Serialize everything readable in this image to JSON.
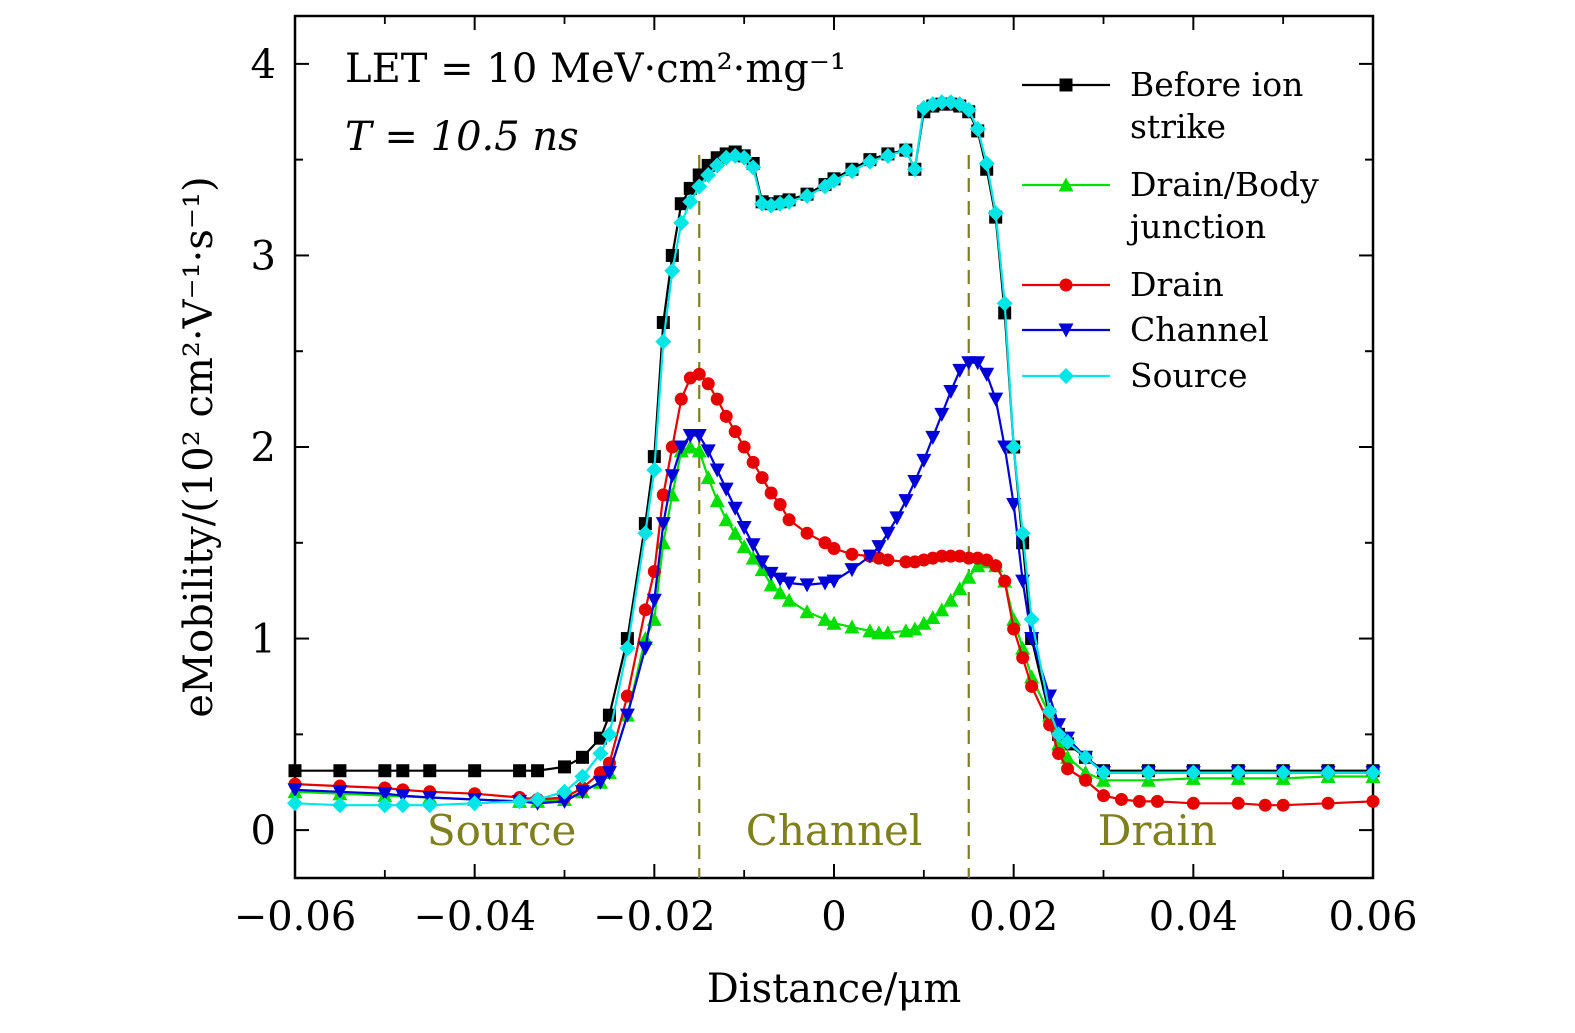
{
  "chart_data": {
    "type": "line",
    "title": "",
    "xlabel": "Distance/μm",
    "ylabel": "eMobility/(10² cm²·V⁻¹·s⁻¹)",
    "xlim": [
      -0.06,
      0.06
    ],
    "ylim": [
      -0.25,
      4.25
    ],
    "xticks": [
      -0.06,
      -0.04,
      -0.02,
      0,
      0.02,
      0.04,
      0.06
    ],
    "xtick_labels": [
      "−0.06",
      "−0.04",
      "−0.02",
      "0",
      "0.02",
      "0.04",
      "0.06"
    ],
    "yticks": [
      0,
      1,
      2,
      3,
      4
    ],
    "ytick_labels": [
      "0",
      "1",
      "2",
      "3",
      "4"
    ],
    "grid": false,
    "legend_position": "top-right",
    "annotations": {
      "let": "LET = 10 MeV·cm²·mg⁻¹",
      "time": "T = 10.5 ns"
    },
    "regions": [
      {
        "label": "Source",
        "x": -0.037
      },
      {
        "label": "Channel",
        "x": 0
      },
      {
        "label": "Drain",
        "x": 0.036
      }
    ],
    "boundaries": [
      -0.015,
      0.015
    ],
    "boundary_color": "#7f7f1e",
    "series": [
      {
        "name": "Before ion strike",
        "color": "#000000",
        "marker": "square",
        "x": [
          -0.06,
          -0.055,
          -0.05,
          -0.048,
          -0.045,
          -0.04,
          -0.035,
          -0.033,
          -0.03,
          -0.028,
          -0.026,
          -0.025,
          -0.023,
          -0.021,
          -0.02,
          -0.019,
          -0.018,
          -0.017,
          -0.016,
          -0.015,
          -0.014,
          -0.013,
          -0.012,
          -0.011,
          -0.01,
          -0.009,
          -0.008,
          -0.007,
          -0.006,
          -0.005,
          -0.003,
          -0.001,
          0,
          0.002,
          0.004,
          0.006,
          0.008,
          0.009,
          0.01,
          0.011,
          0.012,
          0.013,
          0.014,
          0.015,
          0.016,
          0.017,
          0.018,
          0.019,
          0.02,
          0.021,
          0.022,
          0.024,
          0.025,
          0.026,
          0.028,
          0.03,
          0.035,
          0.04,
          0.045,
          0.05,
          0.055,
          0.06
        ],
        "y": [
          0.31,
          0.31,
          0.31,
          0.31,
          0.31,
          0.31,
          0.31,
          0.31,
          0.33,
          0.38,
          0.48,
          0.6,
          1.0,
          1.6,
          1.95,
          2.65,
          3.0,
          3.27,
          3.35,
          3.42,
          3.47,
          3.51,
          3.53,
          3.54,
          3.52,
          3.48,
          3.28,
          3.27,
          3.28,
          3.29,
          3.32,
          3.37,
          3.4,
          3.45,
          3.5,
          3.53,
          3.55,
          3.45,
          3.75,
          3.78,
          3.79,
          3.79,
          3.78,
          3.75,
          3.65,
          3.45,
          3.2,
          2.7,
          2.0,
          1.5,
          1.0,
          0.6,
          0.5,
          0.45,
          0.38,
          0.31,
          0.31,
          0.31,
          0.31,
          0.31,
          0.31,
          0.31
        ]
      },
      {
        "name": "Drain/Body junction",
        "color": "#00e000",
        "marker": "triangle-up",
        "x": [
          -0.06,
          -0.055,
          -0.05,
          -0.045,
          -0.04,
          -0.035,
          -0.033,
          -0.03,
          -0.028,
          -0.026,
          -0.025,
          -0.023,
          -0.021,
          -0.02,
          -0.019,
          -0.018,
          -0.017,
          -0.016,
          -0.015,
          -0.014,
          -0.013,
          -0.012,
          -0.011,
          -0.01,
          -0.009,
          -0.008,
          -0.007,
          -0.006,
          -0.005,
          -0.003,
          -0.001,
          0,
          0.002,
          0.004,
          0.005,
          0.006,
          0.008,
          0.009,
          0.01,
          0.011,
          0.012,
          0.013,
          0.014,
          0.015,
          0.016,
          0.017,
          0.018,
          0.019,
          0.02,
          0.021,
          0.022,
          0.024,
          0.025,
          0.026,
          0.028,
          0.03,
          0.035,
          0.04,
          0.045,
          0.05,
          0.055,
          0.06
        ],
        "y": [
          0.2,
          0.19,
          0.18,
          0.17,
          0.16,
          0.15,
          0.15,
          0.16,
          0.2,
          0.25,
          0.3,
          0.6,
          1.0,
          1.1,
          1.5,
          1.75,
          1.98,
          2.0,
          1.98,
          1.84,
          1.72,
          1.62,
          1.55,
          1.48,
          1.42,
          1.36,
          1.28,
          1.24,
          1.2,
          1.14,
          1.1,
          1.08,
          1.06,
          1.04,
          1.03,
          1.03,
          1.04,
          1.05,
          1.08,
          1.11,
          1.15,
          1.2,
          1.26,
          1.32,
          1.38,
          1.4,
          1.38,
          1.3,
          1.1,
          0.95,
          0.8,
          0.6,
          0.45,
          0.38,
          0.3,
          0.26,
          0.26,
          0.27,
          0.27,
          0.27,
          0.28,
          0.28
        ]
      },
      {
        "name": "Drain",
        "color": "#e60000",
        "marker": "circle",
        "x": [
          -0.06,
          -0.055,
          -0.05,
          -0.048,
          -0.045,
          -0.04,
          -0.035,
          -0.033,
          -0.03,
          -0.028,
          -0.026,
          -0.025,
          -0.023,
          -0.021,
          -0.02,
          -0.019,
          -0.018,
          -0.017,
          -0.016,
          -0.015,
          -0.014,
          -0.013,
          -0.012,
          -0.011,
          -0.01,
          -0.009,
          -0.008,
          -0.007,
          -0.006,
          -0.005,
          -0.003,
          -0.001,
          0,
          0.002,
          0.004,
          0.005,
          0.006,
          0.008,
          0.009,
          0.01,
          0.011,
          0.012,
          0.013,
          0.014,
          0.015,
          0.016,
          0.017,
          0.018,
          0.019,
          0.02,
          0.021,
          0.022,
          0.024,
          0.025,
          0.026,
          0.028,
          0.03,
          0.032,
          0.034,
          0.036,
          0.04,
          0.045,
          0.048,
          0.05,
          0.055,
          0.06
        ],
        "y": [
          0.24,
          0.23,
          0.22,
          0.21,
          0.2,
          0.19,
          0.17,
          0.16,
          0.17,
          0.22,
          0.3,
          0.35,
          0.7,
          1.15,
          1.35,
          1.75,
          2.0,
          2.25,
          2.36,
          2.38,
          2.33,
          2.25,
          2.16,
          2.08,
          2.0,
          1.92,
          1.84,
          1.76,
          1.7,
          1.62,
          1.55,
          1.5,
          1.47,
          1.44,
          1.43,
          1.42,
          1.41,
          1.4,
          1.4,
          1.41,
          1.42,
          1.43,
          1.43,
          1.43,
          1.42,
          1.42,
          1.41,
          1.38,
          1.3,
          1.05,
          0.9,
          0.75,
          0.55,
          0.4,
          0.32,
          0.26,
          0.18,
          0.16,
          0.15,
          0.15,
          0.14,
          0.14,
          0.13,
          0.13,
          0.14,
          0.15
        ]
      },
      {
        "name": "Channel",
        "color": "#0000d8",
        "marker": "triangle-down",
        "x": [
          -0.06,
          -0.055,
          -0.05,
          -0.048,
          -0.045,
          -0.04,
          -0.035,
          -0.033,
          -0.03,
          -0.028,
          -0.026,
          -0.025,
          -0.023,
          -0.021,
          -0.02,
          -0.019,
          -0.018,
          -0.017,
          -0.016,
          -0.015,
          -0.014,
          -0.013,
          -0.012,
          -0.011,
          -0.01,
          -0.009,
          -0.008,
          -0.007,
          -0.006,
          -0.005,
          -0.003,
          -0.001,
          0,
          0.002,
          0.004,
          0.005,
          0.006,
          0.007,
          0.008,
          0.009,
          0.01,
          0.011,
          0.012,
          0.013,
          0.014,
          0.015,
          0.016,
          0.017,
          0.018,
          0.019,
          0.02,
          0.021,
          0.022,
          0.024,
          0.025,
          0.026,
          0.028,
          0.03,
          0.035,
          0.04,
          0.045,
          0.05,
          0.055,
          0.06
        ],
        "y": [
          0.21,
          0.2,
          0.19,
          0.18,
          0.17,
          0.16,
          0.15,
          0.14,
          0.15,
          0.2,
          0.25,
          0.3,
          0.6,
          0.95,
          1.2,
          1.6,
          1.85,
          2.0,
          2.06,
          2.06,
          1.98,
          1.88,
          1.78,
          1.68,
          1.58,
          1.49,
          1.4,
          1.34,
          1.31,
          1.29,
          1.28,
          1.29,
          1.3,
          1.36,
          1.43,
          1.48,
          1.55,
          1.63,
          1.72,
          1.82,
          1.93,
          2.05,
          2.17,
          2.29,
          2.4,
          2.44,
          2.44,
          2.38,
          2.25,
          2.0,
          1.7,
          1.3,
          1.0,
          0.7,
          0.55,
          0.48,
          0.38,
          0.3,
          0.3,
          0.3,
          0.3,
          0.3,
          0.3,
          0.3
        ]
      },
      {
        "name": "Source",
        "color": "#00e5e5",
        "marker": "diamond",
        "x": [
          -0.06,
          -0.055,
          -0.05,
          -0.048,
          -0.045,
          -0.04,
          -0.035,
          -0.033,
          -0.03,
          -0.028,
          -0.026,
          -0.025,
          -0.023,
          -0.021,
          -0.02,
          -0.019,
          -0.018,
          -0.017,
          -0.016,
          -0.015,
          -0.014,
          -0.013,
          -0.012,
          -0.011,
          -0.01,
          -0.009,
          -0.008,
          -0.007,
          -0.006,
          -0.005,
          -0.003,
          -0.001,
          0,
          0.002,
          0.004,
          0.006,
          0.008,
          0.009,
          0.01,
          0.011,
          0.012,
          0.013,
          0.014,
          0.015,
          0.016,
          0.017,
          0.018,
          0.019,
          0.02,
          0.021,
          0.022,
          0.024,
          0.025,
          0.026,
          0.028,
          0.03,
          0.035,
          0.04,
          0.045,
          0.05,
          0.055,
          0.06
        ],
        "y": [
          0.14,
          0.13,
          0.13,
          0.13,
          0.13,
          0.14,
          0.15,
          0.16,
          0.2,
          0.28,
          0.4,
          0.5,
          0.95,
          1.55,
          1.88,
          2.55,
          2.92,
          3.17,
          3.28,
          3.36,
          3.42,
          3.47,
          3.51,
          3.52,
          3.51,
          3.46,
          3.27,
          3.26,
          3.27,
          3.28,
          3.31,
          3.36,
          3.39,
          3.44,
          3.49,
          3.52,
          3.55,
          3.45,
          3.77,
          3.79,
          3.8,
          3.8,
          3.79,
          3.76,
          3.66,
          3.48,
          3.22,
          2.75,
          2.0,
          1.55,
          1.1,
          0.62,
          0.5,
          0.46,
          0.38,
          0.3,
          0.3,
          0.3,
          0.3,
          0.3,
          0.3,
          0.3
        ]
      }
    ]
  }
}
